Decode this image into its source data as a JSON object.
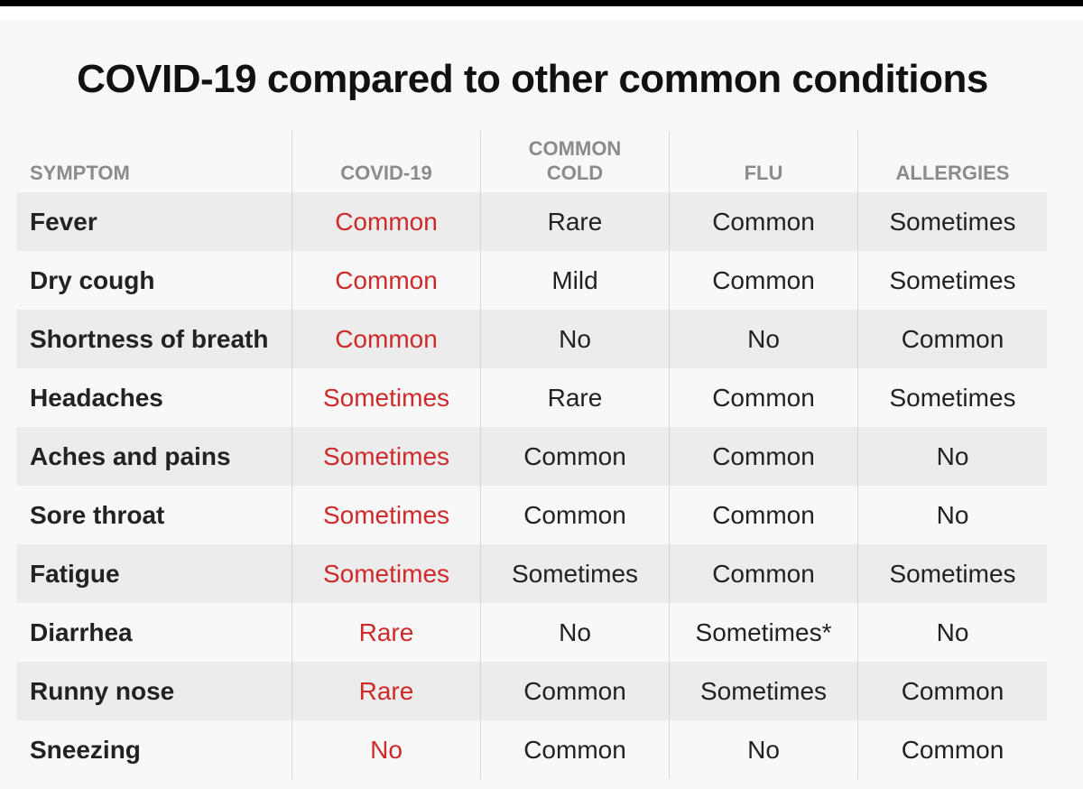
{
  "title": "COVID-19 compared to other common conditions",
  "colors": {
    "covid_text": "#cf2a2a",
    "header_text": "#8b8b8b",
    "row_shade": "#ececec"
  },
  "columns": [
    "SYMPTOM",
    "COVID-19",
    [
      "COMMON",
      "COLD"
    ],
    "FLU",
    "ALLERGIES"
  ],
  "rows": [
    [
      "Fever",
      "Common",
      "Rare",
      "Common",
      "Sometimes"
    ],
    [
      "Dry cough",
      "Common",
      "Mild",
      "Common",
      "Sometimes"
    ],
    [
      "Shortness of breath",
      "Common",
      "No",
      "No",
      "Common"
    ],
    [
      "Headaches",
      "Sometimes",
      "Rare",
      "Common",
      "Sometimes"
    ],
    [
      "Aches and pains",
      "Sometimes",
      "Common",
      "Common",
      "No"
    ],
    [
      "Sore throat",
      "Sometimes",
      "Common",
      "Common",
      "No"
    ],
    [
      "Fatigue",
      "Sometimes",
      "Sometimes",
      "Common",
      "Sometimes"
    ],
    [
      "Diarrhea",
      "Rare",
      "No",
      "Sometimes*",
      "No"
    ],
    [
      "Runny nose",
      "Rare",
      "Common",
      "Sometimes",
      "Common"
    ],
    [
      "Sneezing",
      "No",
      "Common",
      "No",
      "Common"
    ]
  ]
}
